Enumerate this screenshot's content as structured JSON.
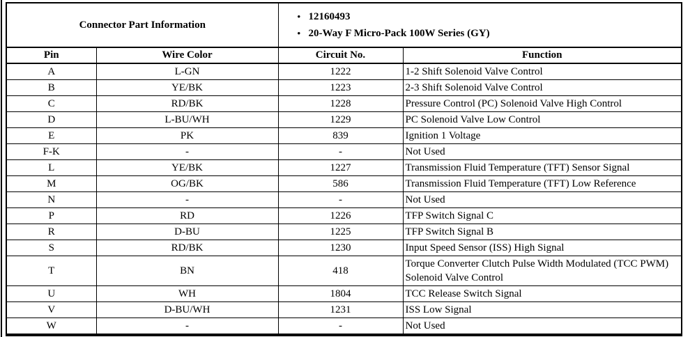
{
  "page": {
    "background": "#ffffff",
    "line_color": "#000000"
  },
  "connector_info": {
    "title": "Connector Part Information",
    "bullet_glyph": "•",
    "bullets": [
      "12160493",
      "20-Way F Micro-Pack 100W Series (GY)"
    ]
  },
  "table": {
    "headers": [
      "Pin",
      "Wire Color",
      "Circuit No.",
      "Function"
    ],
    "rows": [
      {
        "pin": "A",
        "wire_color": "L-GN",
        "circuit": "1222",
        "function": "1-2 Shift Solenoid Valve Control"
      },
      {
        "pin": "B",
        "wire_color": "YE/BK",
        "circuit": "1223",
        "function": "2-3 Shift Solenoid Valve Control"
      },
      {
        "pin": "C",
        "wire_color": "RD/BK",
        "circuit": "1228",
        "function": "Pressure Control (PC) Solenoid Valve High Control"
      },
      {
        "pin": "D",
        "wire_color": "L-BU/WH",
        "circuit": "1229",
        "function": "PC Solenoid Valve Low Control"
      },
      {
        "pin": "E",
        "wire_color": "PK",
        "circuit": "839",
        "function": "Ignition 1 Voltage"
      },
      {
        "pin": "F-K",
        "wire_color": "-",
        "circuit": "-",
        "function": "Not Used"
      },
      {
        "pin": "L",
        "wire_color": "YE/BK",
        "circuit": "1227",
        "function": "Transmission Fluid Temperature (TFT) Sensor Signal"
      },
      {
        "pin": "M",
        "wire_color": "OG/BK",
        "circuit": "586",
        "function": "Transmission Fluid Temperature (TFT) Low Reference"
      },
      {
        "pin": "N",
        "wire_color": "-",
        "circuit": "-",
        "function": "Not Used"
      },
      {
        "pin": "P",
        "wire_color": "RD",
        "circuit": "1226",
        "function": "TFP Switch Signal C"
      },
      {
        "pin": "R",
        "wire_color": "D-BU",
        "circuit": "1225",
        "function": "TFP Switch Signal B"
      },
      {
        "pin": "S",
        "wire_color": "RD/BK",
        "circuit": "1230",
        "function": "Input Speed Sensor (ISS) High Signal"
      },
      {
        "pin": "T",
        "wire_color": "BN",
        "circuit": "418",
        "function": "Torque Converter Clutch Pulse Width Modulated (TCC PWM) Solenoid Valve Control"
      },
      {
        "pin": "U",
        "wire_color": "WH",
        "circuit": "1804",
        "function": "TCC Release Switch Signal"
      },
      {
        "pin": "V",
        "wire_color": "D-BU/WH",
        "circuit": "1231",
        "function": "ISS Low Signal"
      },
      {
        "pin": "W",
        "wire_color": "-",
        "circuit": "-",
        "function": "Not Used"
      }
    ]
  }
}
